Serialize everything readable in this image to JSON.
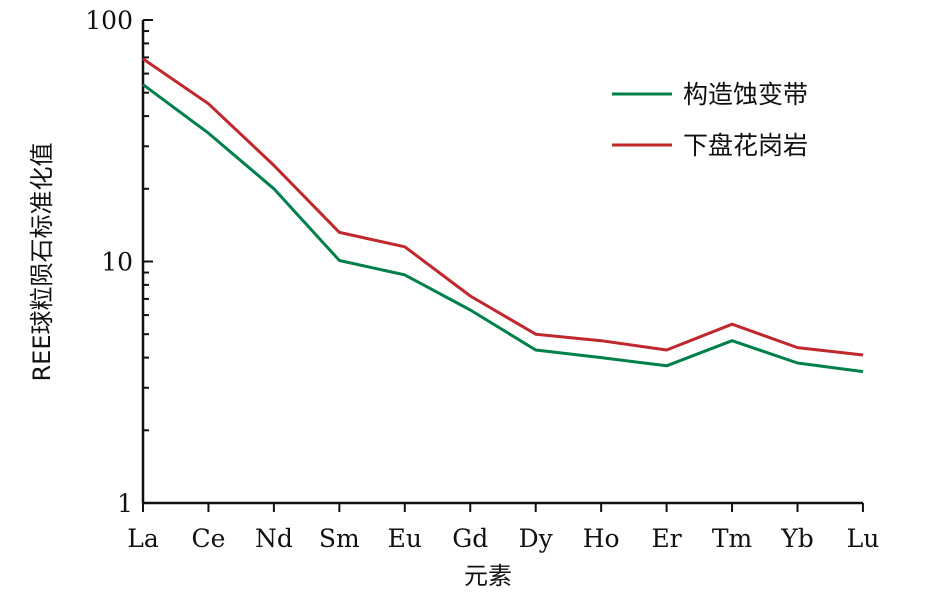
{
  "chart_data": {
    "type": "line",
    "categories": [
      "La",
      "Ce",
      "Nd",
      "Sm",
      "Eu",
      "Gd",
      "Dy",
      "Ho",
      "Er",
      "Tm",
      "Yb",
      "Lu"
    ],
    "series": [
      {
        "name": "构造蚀变带",
        "color": "#00804a",
        "values": [
          54,
          34,
          20,
          10.1,
          8.8,
          6.3,
          4.3,
          4.0,
          3.7,
          4.7,
          3.8,
          3.5
        ]
      },
      {
        "name": "下盘花岗岩",
        "color": "#c0282d",
        "values": [
          69,
          45,
          25,
          13.2,
          11.5,
          7.2,
          5.0,
          4.7,
          4.3,
          5.5,
          4.4,
          4.1
        ]
      }
    ],
    "ylabel": "REE球粒陨石标准化值",
    "xlabel": "元素",
    "yscale": "log",
    "ylim": [
      1,
      100
    ],
    "y_ticks": [
      "1",
      "10",
      "100"
    ],
    "grid": false,
    "legend_position": "top-right"
  }
}
